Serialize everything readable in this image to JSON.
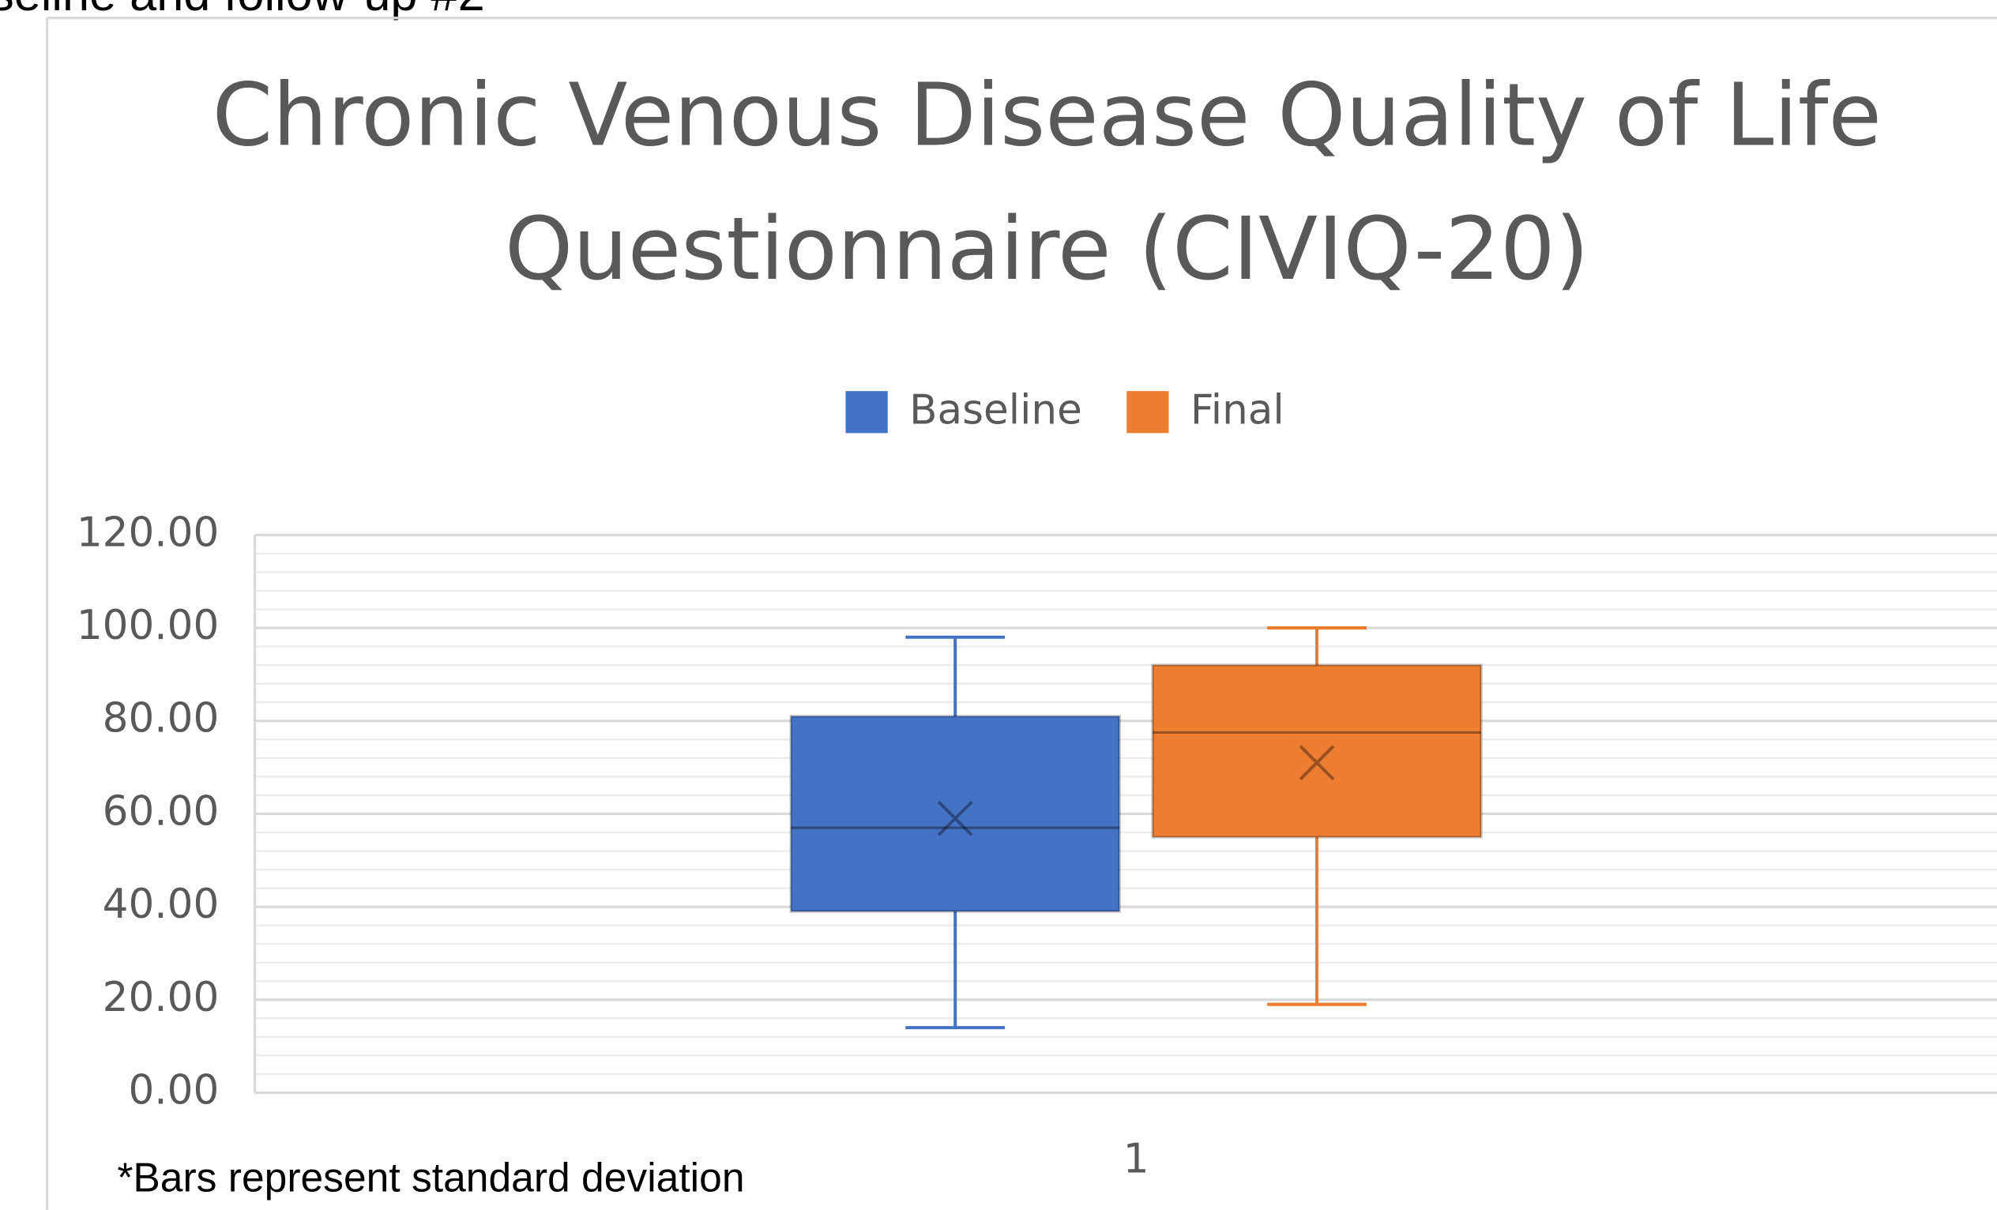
{
  "caption": "seline and follow-up #2",
  "chart_data": {
    "type": "box",
    "title": [
      "Chronic Venous Disease Quality of Life",
      "Questionnaire (CIVIQ-20)"
    ],
    "categories": [
      "1"
    ],
    "series": [
      {
        "name": "Baseline",
        "color": "#4472c4",
        "values": {
          "min": 14,
          "q1": 39,
          "median": 57,
          "q3": 81,
          "max": 98,
          "mean": 59
        }
      },
      {
        "name": "Final",
        "color": "#ed7d31",
        "values": {
          "min": 19,
          "q1": 55,
          "median": 77.5,
          "q3": 92,
          "max": 100,
          "mean": 71
        }
      }
    ],
    "ylim": [
      0,
      120
    ],
    "yticks": [
      {
        "value": 0,
        "label": "0.00"
      },
      {
        "value": 20,
        "label": "20.00"
      },
      {
        "value": 40,
        "label": "40.00"
      },
      {
        "value": 60,
        "label": "60.00"
      },
      {
        "value": 80,
        "label": "80.00"
      },
      {
        "value": 100,
        "label": "100.00"
      },
      {
        "value": 120,
        "label": "120.00"
      }
    ],
    "grid": true,
    "legend": "top",
    "footnote": "*Bars represent standard deviation"
  }
}
